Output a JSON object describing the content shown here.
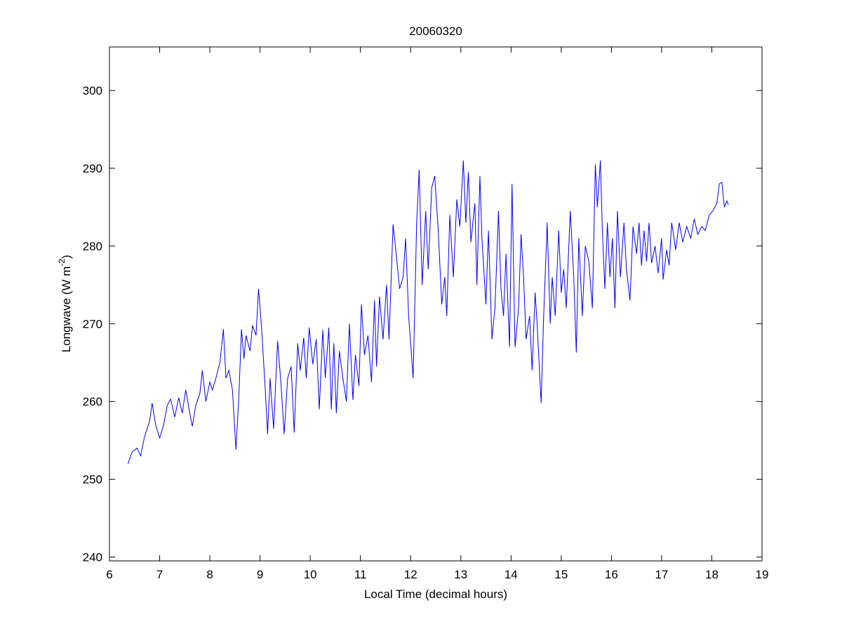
{
  "chart_data": {
    "type": "line",
    "title": "20060320",
    "xlabel": "Local Time (decimal hours)",
    "ylabel": [
      "Longwave (W m",
      "-2",
      ")"
    ],
    "xlim": [
      6,
      19
    ],
    "xticks": [
      6,
      7,
      8,
      9,
      10,
      11,
      12,
      13,
      14,
      15,
      16,
      17,
      18,
      19
    ],
    "ylim": [
      239.5,
      305.6
    ],
    "yticks": [
      240,
      250,
      260,
      270,
      280,
      290,
      300
    ],
    "grid": false,
    "series": [
      {
        "name": "Longwave",
        "color": "#0000ff",
        "x": [
          6.37,
          6.45,
          6.55,
          6.62,
          6.7,
          6.8,
          6.85,
          6.92,
          7.0,
          7.08,
          7.15,
          7.22,
          7.3,
          7.38,
          7.45,
          7.52,
          7.6,
          7.65,
          7.72,
          7.8,
          7.85,
          7.92,
          8.0,
          8.05,
          8.12,
          8.2,
          8.27,
          8.32,
          8.38,
          8.45,
          8.52,
          8.58,
          8.63,
          8.68,
          8.72,
          8.8,
          8.85,
          8.92,
          8.97,
          9.03,
          9.1,
          9.15,
          9.2,
          9.27,
          9.35,
          9.42,
          9.48,
          9.55,
          9.62,
          9.68,
          9.75,
          9.8,
          9.87,
          9.92,
          9.98,
          10.05,
          10.12,
          10.18,
          10.25,
          10.3,
          10.37,
          10.42,
          10.47,
          10.52,
          10.58,
          10.65,
          10.72,
          10.78,
          10.85,
          10.9,
          10.97,
          11.02,
          11.08,
          11.15,
          11.22,
          11.28,
          11.32,
          11.38,
          11.45,
          11.52,
          11.57,
          11.65,
          11.72,
          11.78,
          11.85,
          11.9,
          11.96,
          12.05,
          12.12,
          12.17,
          12.23,
          12.3,
          12.35,
          12.42,
          12.48,
          12.55,
          12.62,
          12.68,
          12.72,
          12.78,
          12.85,
          12.92,
          12.98,
          13.05,
          13.1,
          13.15,
          13.2,
          13.28,
          13.32,
          13.38,
          13.42,
          13.5,
          13.55,
          13.62,
          13.68,
          13.75,
          13.8,
          13.85,
          13.9,
          13.97,
          14.02,
          14.08,
          14.15,
          14.2,
          14.25,
          14.3,
          14.37,
          14.42,
          14.48,
          14.52,
          14.6,
          14.65,
          14.72,
          14.78,
          14.82,
          14.88,
          14.95,
          15.0,
          15.05,
          15.1,
          15.18,
          15.25,
          15.3,
          15.35,
          15.42,
          15.48,
          15.55,
          15.62,
          15.68,
          15.72,
          15.78,
          15.82,
          15.87,
          15.92,
          15.97,
          16.02,
          16.07,
          16.12,
          16.18,
          16.25,
          16.3,
          16.37,
          16.43,
          16.5,
          16.55,
          16.6,
          16.65,
          16.7,
          16.75,
          16.8,
          16.87,
          16.93,
          17.0,
          17.03,
          17.1,
          17.15,
          17.2,
          17.28,
          17.35,
          17.42,
          17.5,
          17.58,
          17.65,
          17.72,
          17.8,
          17.87,
          17.95,
          18.02,
          18.1,
          18.15,
          18.2,
          18.25,
          18.3,
          18.33
        ],
        "values": [
          252,
          253.5,
          254,
          253,
          255.5,
          257.5,
          259.8,
          257,
          255.3,
          257,
          259.5,
          260.3,
          258,
          260.5,
          258.5,
          261.5,
          258.5,
          256.8,
          259.5,
          261,
          264,
          260,
          262.5,
          261.5,
          263,
          265,
          269.3,
          263,
          264,
          261.5,
          253.8,
          261,
          269.3,
          265.5,
          268.5,
          266.5,
          269.8,
          268.5,
          274.5,
          269.5,
          262,
          255.8,
          263,
          256.5,
          267.8,
          262,
          255.8,
          263,
          264.5,
          256,
          267.5,
          264,
          268.2,
          263,
          269.5,
          264.8,
          268,
          259,
          269.2,
          263,
          269.5,
          259,
          267.5,
          258.5,
          266.5,
          263,
          260,
          270,
          260.2,
          266,
          262,
          272.5,
          266,
          268.5,
          262.5,
          273,
          264.5,
          273.5,
          268,
          275,
          268,
          282.8,
          278.5,
          274.5,
          276,
          281,
          271,
          263,
          283,
          289.8,
          275,
          284.5,
          277,
          287.5,
          289,
          282,
          272.5,
          276,
          271,
          284,
          276,
          286,
          282.5,
          291,
          283,
          289.5,
          280.5,
          285.5,
          275,
          289,
          281,
          272.5,
          282,
          268,
          272,
          284.5,
          274.5,
          271,
          279,
          267,
          288,
          267,
          272,
          281.5,
          276,
          268,
          271,
          264,
          274,
          270,
          259.8,
          271,
          283,
          270,
          276,
          271,
          282,
          274,
          277,
          272,
          284.5,
          276,
          266.3,
          281,
          271,
          280,
          278,
          272,
          290.5,
          285,
          291,
          282,
          274.5,
          283,
          276,
          281,
          272,
          284.5,
          276,
          283,
          277,
          273,
          282.5,
          279,
          283,
          277.5,
          282,
          278,
          283,
          277.8,
          280,
          276.5,
          281,
          275.7,
          279.5,
          277.5,
          283,
          279.5,
          283,
          280.5,
          282.5,
          281,
          283.5,
          281.5,
          282.5,
          282,
          284,
          284.5,
          285.5,
          288,
          288.2,
          285,
          285.8,
          285.3
        ]
      }
    ]
  }
}
